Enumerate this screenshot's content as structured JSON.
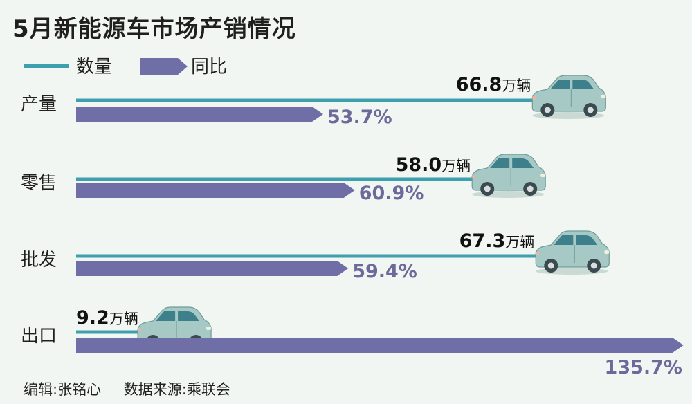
{
  "title": "5月新能源车市场产销情况",
  "legend": {
    "quantity_label": "数量",
    "yoy_label": "同比"
  },
  "footer": {
    "editor": "编辑:张铭心",
    "source": "数据来源:乘联会"
  },
  "colors": {
    "quantity": "#3e9fae",
    "yoy": "#6f6ea7",
    "yoy_text": "#6b6a9b",
    "car_body": "#a7c9c5",
    "car_window": "#3d7f8a",
    "background": "#f1f6f2"
  },
  "chart_data": {
    "type": "bar",
    "categories": [
      "产量",
      "零售",
      "批发",
      "出口"
    ],
    "series": [
      {
        "name": "数量",
        "unit": "万辆",
        "values": [
          66.8,
          58.0,
          67.3,
          9.2
        ],
        "labels": [
          "66.8",
          "58.0",
          "67.3",
          "9.2"
        ]
      },
      {
        "name": "同比",
        "unit": "%",
        "values": [
          53.7,
          60.9,
          59.4,
          135.7
        ],
        "labels": [
          "53.7%",
          "60.9%",
          "59.4%",
          "135.7%"
        ]
      }
    ],
    "grid": false,
    "legend_position": "top-left"
  }
}
